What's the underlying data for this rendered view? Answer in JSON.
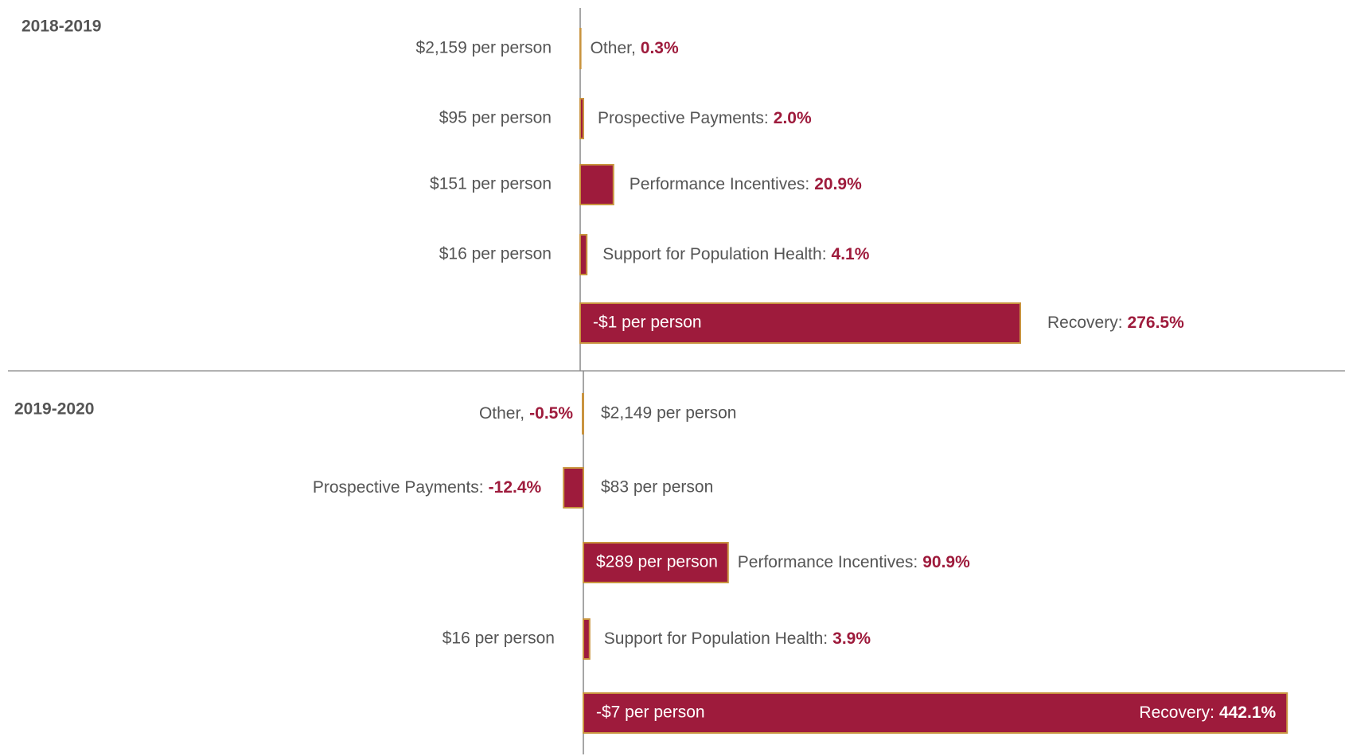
{
  "chart_data": [
    {
      "type": "bar",
      "title": "2018-2019",
      "categories": [
        "Other,",
        "Prospective Payments:",
        "Performance Incentives:",
        "Support for Population Health:",
        "Recovery:"
      ],
      "values": [
        0.3,
        2.0,
        20.9,
        4.1,
        276.5
      ],
      "value_labels": [
        "0.3%",
        "2.0%",
        "20.9%",
        "4.1%",
        "276.5%"
      ],
      "per_person": [
        "$2,159 per person",
        "$95 per person",
        "$151 per person",
        "$16 per person",
        "-$1 per person"
      ],
      "color": "#9e1b3c",
      "edge_color": "#c9943f"
    },
    {
      "type": "bar",
      "title": "2019-2020",
      "categories": [
        "Other,",
        "Prospective Payments:",
        "Performance Incentives:",
        "Support for Population Health:",
        "Recovery:"
      ],
      "values": [
        -0.5,
        -12.4,
        90.9,
        3.9,
        442.1
      ],
      "value_labels": [
        "-0.5%",
        "-12.4%",
        "90.9%",
        "3.9%",
        "442.1%"
      ],
      "per_person": [
        "$2,149 per person",
        "$83 per person",
        "$289 per person",
        "$16 per person",
        "-$7 per person"
      ],
      "color": "#9e1b3c",
      "edge_color": "#c9943f"
    }
  ]
}
